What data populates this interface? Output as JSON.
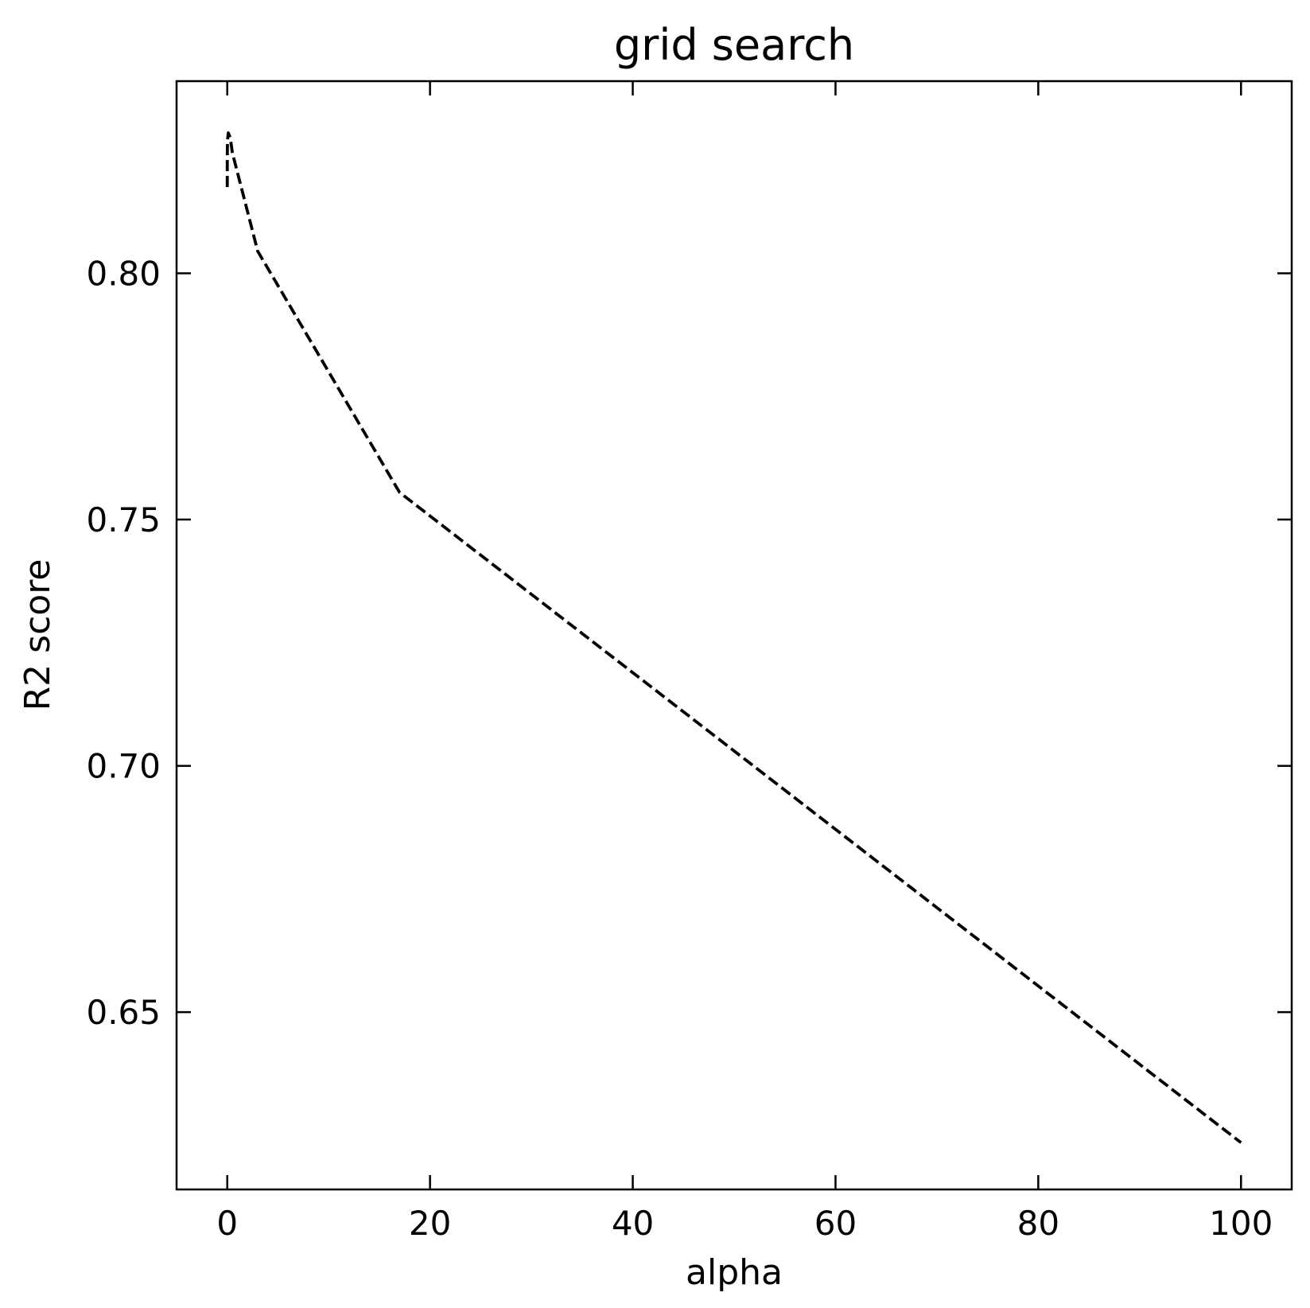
{
  "chart_data": {
    "type": "line",
    "title": "grid search",
    "xlabel": "alpha",
    "ylabel": "R2 score",
    "xlim": [
      -5,
      105
    ],
    "ylim": [
      0.614,
      0.839
    ],
    "xticks": [
      0,
      20,
      40,
      60,
      80,
      100
    ],
    "yticks": [
      0.65,
      0.7,
      0.75,
      0.8
    ],
    "xtick_labels": [
      "0",
      "20",
      "40",
      "60",
      "80",
      "100"
    ],
    "ytick_labels": [
      "0.65",
      "0.70",
      "0.75",
      "0.80"
    ],
    "grid": false,
    "series": [
      {
        "line_style": "dashed",
        "color": "#000000",
        "x": [
          0.0,
          0.001,
          0.01,
          0.05,
          0.1,
          0.3,
          0.5,
          3.0,
          17.0,
          100.0
        ],
        "y": [
          0.8175,
          0.8225,
          0.8255,
          0.8275,
          0.8285,
          0.8275,
          0.8245,
          0.8045,
          0.7555,
          0.6235
        ]
      }
    ]
  }
}
